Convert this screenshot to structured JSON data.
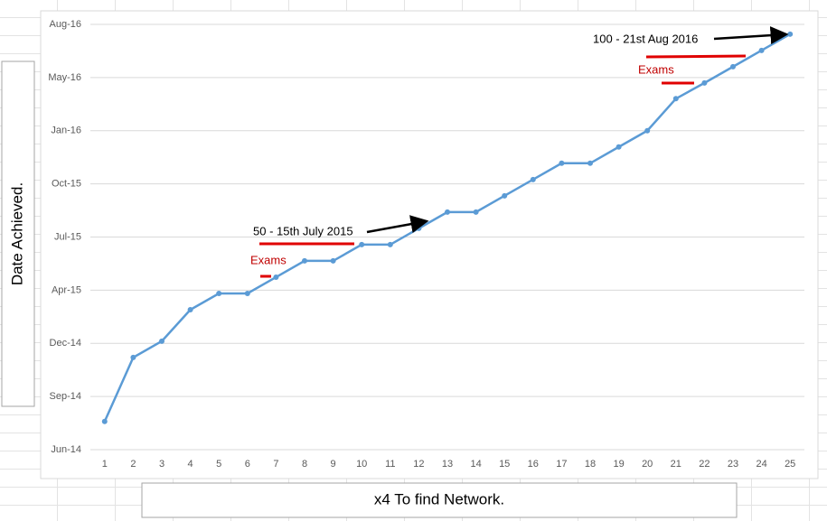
{
  "chart_data": {
    "type": "line",
    "y_label": "Date Achieved.",
    "x_label": "x4 To find Network.",
    "annotations": [
      "50 - 15th July 2015",
      "Exams",
      "100 - 21st Aug 2016",
      "Exams"
    ],
    "categories": [
      "1",
      "2",
      "3",
      "4",
      "5",
      "6",
      "7",
      "8",
      "9",
      "10",
      "11",
      "12",
      "13",
      "14",
      "15",
      "16",
      "17",
      "18",
      "19",
      "20",
      "21",
      "22",
      "23",
      "24",
      "25"
    ],
    "series": [
      {
        "name": "Date Achieved",
        "color": "#5b9bd5",
        "values": [
          41858,
          41976,
          42006,
          42064,
          42094,
          42094,
          42124,
          42154,
          42154,
          42184,
          42184,
          42214,
          42244,
          42244,
          42274,
          42304,
          42334,
          42334,
          42364,
          42394,
          42453,
          42482,
          42512,
          42542,
          42572
        ]
      }
    ],
    "ylim": [
      41806,
      42590
    ],
    "yticks": [
      {
        "value": 41806,
        "label": "Jun-14"
      },
      {
        "value": 41904,
        "label": "Sep-14"
      },
      {
        "value": 42002,
        "label": "Dec-14"
      },
      {
        "value": 42100,
        "label": "Apr-15"
      },
      {
        "value": 42198,
        "label": "Jul-15"
      },
      {
        "value": 42296,
        "label": "Oct-15"
      },
      {
        "value": 42394,
        "label": "Jan-16"
      },
      {
        "value": 42492,
        "label": "May-16"
      },
      {
        "value": 42590,
        "label": "Aug-16"
      }
    ],
    "grid": true
  }
}
